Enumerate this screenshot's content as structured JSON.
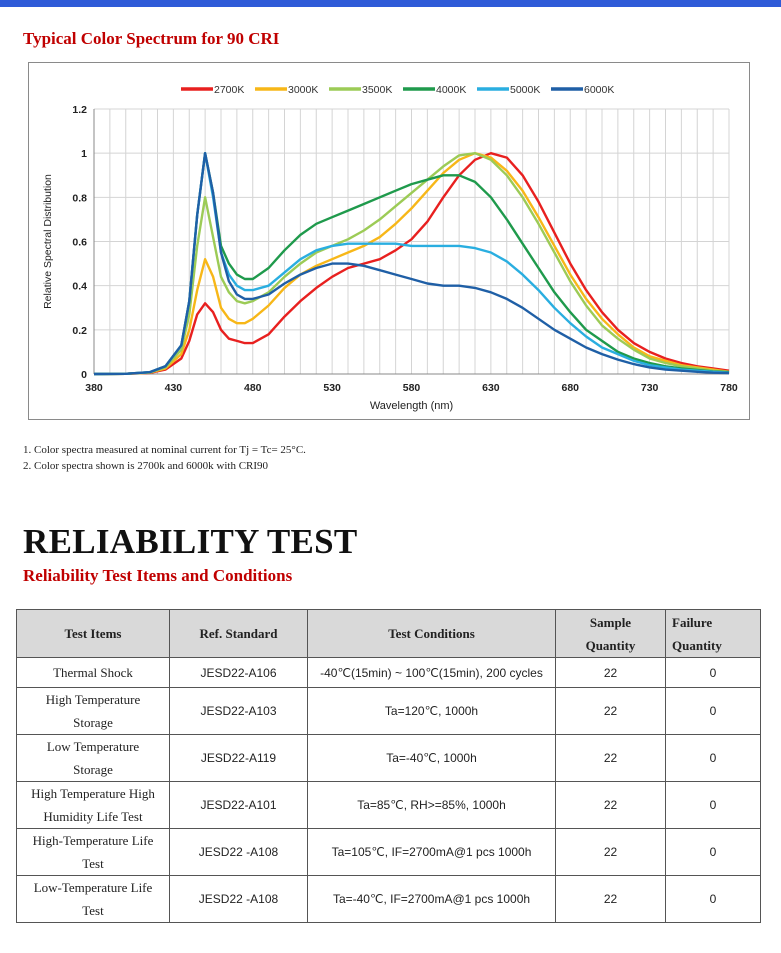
{
  "spectrum_title": "Typical Color Spectrum for 90 CRI",
  "chart_data": {
    "type": "line",
    "title": "",
    "xlabel": "Wavelength (nm)",
    "ylabel": "Relative Spectral Distribution",
    "xlim": [
      380,
      780
    ],
    "ylim": [
      0,
      1.2
    ],
    "xticks": [
      380,
      430,
      480,
      530,
      580,
      630,
      680,
      730,
      780
    ],
    "yticks": [
      0,
      0.2,
      0.4,
      0.6,
      0.8,
      1,
      1.2
    ],
    "ytick_labels": [
      "0",
      "0.2",
      "0.4",
      "0.6",
      "0.8",
      "1",
      "1.2"
    ],
    "grid": true,
    "legend_position": "top",
    "x": [
      380,
      400,
      415,
      425,
      435,
      440,
      445,
      450,
      455,
      460,
      465,
      470,
      475,
      480,
      490,
      500,
      510,
      520,
      530,
      540,
      550,
      560,
      570,
      580,
      590,
      600,
      610,
      620,
      630,
      640,
      650,
      660,
      670,
      680,
      690,
      700,
      710,
      720,
      730,
      740,
      750,
      760,
      770,
      780
    ],
    "series": [
      {
        "name": "2700K",
        "color": "#e8201f",
        "values": [
          0,
          0.001,
          0.005,
          0.02,
          0.07,
          0.15,
          0.27,
          0.32,
          0.28,
          0.2,
          0.16,
          0.15,
          0.14,
          0.14,
          0.18,
          0.26,
          0.33,
          0.39,
          0.44,
          0.48,
          0.5,
          0.52,
          0.56,
          0.61,
          0.69,
          0.8,
          0.9,
          0.97,
          1.0,
          0.98,
          0.9,
          0.78,
          0.64,
          0.5,
          0.38,
          0.28,
          0.2,
          0.14,
          0.1,
          0.07,
          0.05,
          0.035,
          0.025,
          0.015
        ]
      },
      {
        "name": "3000K",
        "color": "#f7b718",
        "values": [
          0,
          0.001,
          0.006,
          0.025,
          0.09,
          0.2,
          0.38,
          0.52,
          0.44,
          0.3,
          0.25,
          0.23,
          0.23,
          0.25,
          0.31,
          0.39,
          0.45,
          0.49,
          0.52,
          0.55,
          0.58,
          0.62,
          0.68,
          0.75,
          0.83,
          0.91,
          0.97,
          1.0,
          0.98,
          0.92,
          0.83,
          0.71,
          0.58,
          0.45,
          0.34,
          0.25,
          0.18,
          0.12,
          0.08,
          0.06,
          0.04,
          0.03,
          0.02,
          0.01
        ]
      },
      {
        "name": "3500K",
        "color": "#9ccb56",
        "values": [
          0,
          0.001,
          0.007,
          0.03,
          0.11,
          0.27,
          0.58,
          0.8,
          0.62,
          0.44,
          0.37,
          0.33,
          0.32,
          0.33,
          0.37,
          0.44,
          0.5,
          0.55,
          0.58,
          0.61,
          0.65,
          0.7,
          0.76,
          0.82,
          0.88,
          0.94,
          0.99,
          1.0,
          0.97,
          0.9,
          0.8,
          0.68,
          0.55,
          0.42,
          0.31,
          0.22,
          0.16,
          0.11,
          0.07,
          0.05,
          0.035,
          0.025,
          0.015,
          0.01
        ]
      },
      {
        "name": "4000K",
        "color": "#1f9a4c",
        "values": [
          0,
          0.001,
          0.008,
          0.035,
          0.13,
          0.33,
          0.72,
          1.0,
          0.82,
          0.58,
          0.5,
          0.45,
          0.43,
          0.43,
          0.48,
          0.56,
          0.63,
          0.68,
          0.71,
          0.74,
          0.77,
          0.8,
          0.83,
          0.86,
          0.88,
          0.9,
          0.9,
          0.87,
          0.8,
          0.7,
          0.59,
          0.48,
          0.37,
          0.28,
          0.2,
          0.15,
          0.1,
          0.07,
          0.05,
          0.035,
          0.025,
          0.018,
          0.012,
          0.008
        ]
      },
      {
        "name": "5000K",
        "color": "#2aaee0",
        "values": [
          0,
          0.001,
          0.008,
          0.035,
          0.13,
          0.33,
          0.72,
          1.0,
          0.8,
          0.55,
          0.45,
          0.4,
          0.38,
          0.38,
          0.4,
          0.46,
          0.52,
          0.56,
          0.58,
          0.59,
          0.59,
          0.59,
          0.59,
          0.58,
          0.58,
          0.58,
          0.58,
          0.57,
          0.55,
          0.51,
          0.45,
          0.38,
          0.3,
          0.23,
          0.17,
          0.12,
          0.09,
          0.06,
          0.04,
          0.03,
          0.02,
          0.015,
          0.01,
          0.006
        ]
      },
      {
        "name": "6000K",
        "color": "#1f5fa6",
        "values": [
          0,
          0.001,
          0.008,
          0.035,
          0.13,
          0.33,
          0.72,
          1.0,
          0.82,
          0.55,
          0.42,
          0.36,
          0.34,
          0.34,
          0.36,
          0.41,
          0.45,
          0.48,
          0.5,
          0.5,
          0.49,
          0.47,
          0.45,
          0.43,
          0.41,
          0.4,
          0.4,
          0.39,
          0.37,
          0.34,
          0.3,
          0.25,
          0.2,
          0.16,
          0.12,
          0.09,
          0.065,
          0.045,
          0.03,
          0.02,
          0.015,
          0.01,
          0.006,
          0.004
        ]
      }
    ]
  },
  "notes": [
    "1.   Color spectra measured at nominal current for Tj = Tc= 25°C.",
    "2.   Color spectra shown is 2700k and 6000k with CRI90"
  ],
  "reliability": {
    "title": "RELIABILITY TEST",
    "subtitle": "Reliability Test Items and Conditions",
    "headers": {
      "items": "Test Items",
      "standard": "Ref. Standard",
      "conditions": "Test Conditions",
      "sample_1": "Sample",
      "sample_2": "Quantity",
      "failure_1": "Failure",
      "failure_2": "Quantity"
    },
    "rows": [
      {
        "item_1": "Thermal Shock",
        "item_2": "",
        "standard": "JESD22-A106",
        "conditions": "-40℃(15min) ~ 100℃(15min), 200 cycles",
        "sample": "22",
        "failure": "0"
      },
      {
        "item_1": "High Temperature",
        "item_2": "Storage",
        "standard": "JESD22-A103",
        "conditions": "Ta=120℃, 1000h",
        "sample": "22",
        "failure": "0"
      },
      {
        "item_1": "Low Temperature",
        "item_2": "Storage",
        "standard": "JESD22-A119",
        "conditions": "Ta=-40℃, 1000h",
        "sample": "22",
        "failure": "0"
      },
      {
        "item_1": "High Temperature High",
        "item_2": "Humidity Life Test",
        "standard": "JESD22-A101",
        "conditions": "Ta=85℃, RH>=85%, 1000h",
        "sample": "22",
        "failure": "0"
      },
      {
        "item_1": "High-Temperature Life",
        "item_2": "Test",
        "standard": "JESD22 -A108",
        "conditions": "Ta=105℃, IF=2700mA@1 pcs 1000h",
        "sample": "22",
        "failure": "0"
      },
      {
        "item_1": "Low-Temperature Life",
        "item_2": "Test",
        "standard": "JESD22 -A108",
        "conditions": "Ta=-40℃, IF=2700mA@1 pcs 1000h",
        "sample": "22",
        "failure": "0"
      }
    ]
  }
}
